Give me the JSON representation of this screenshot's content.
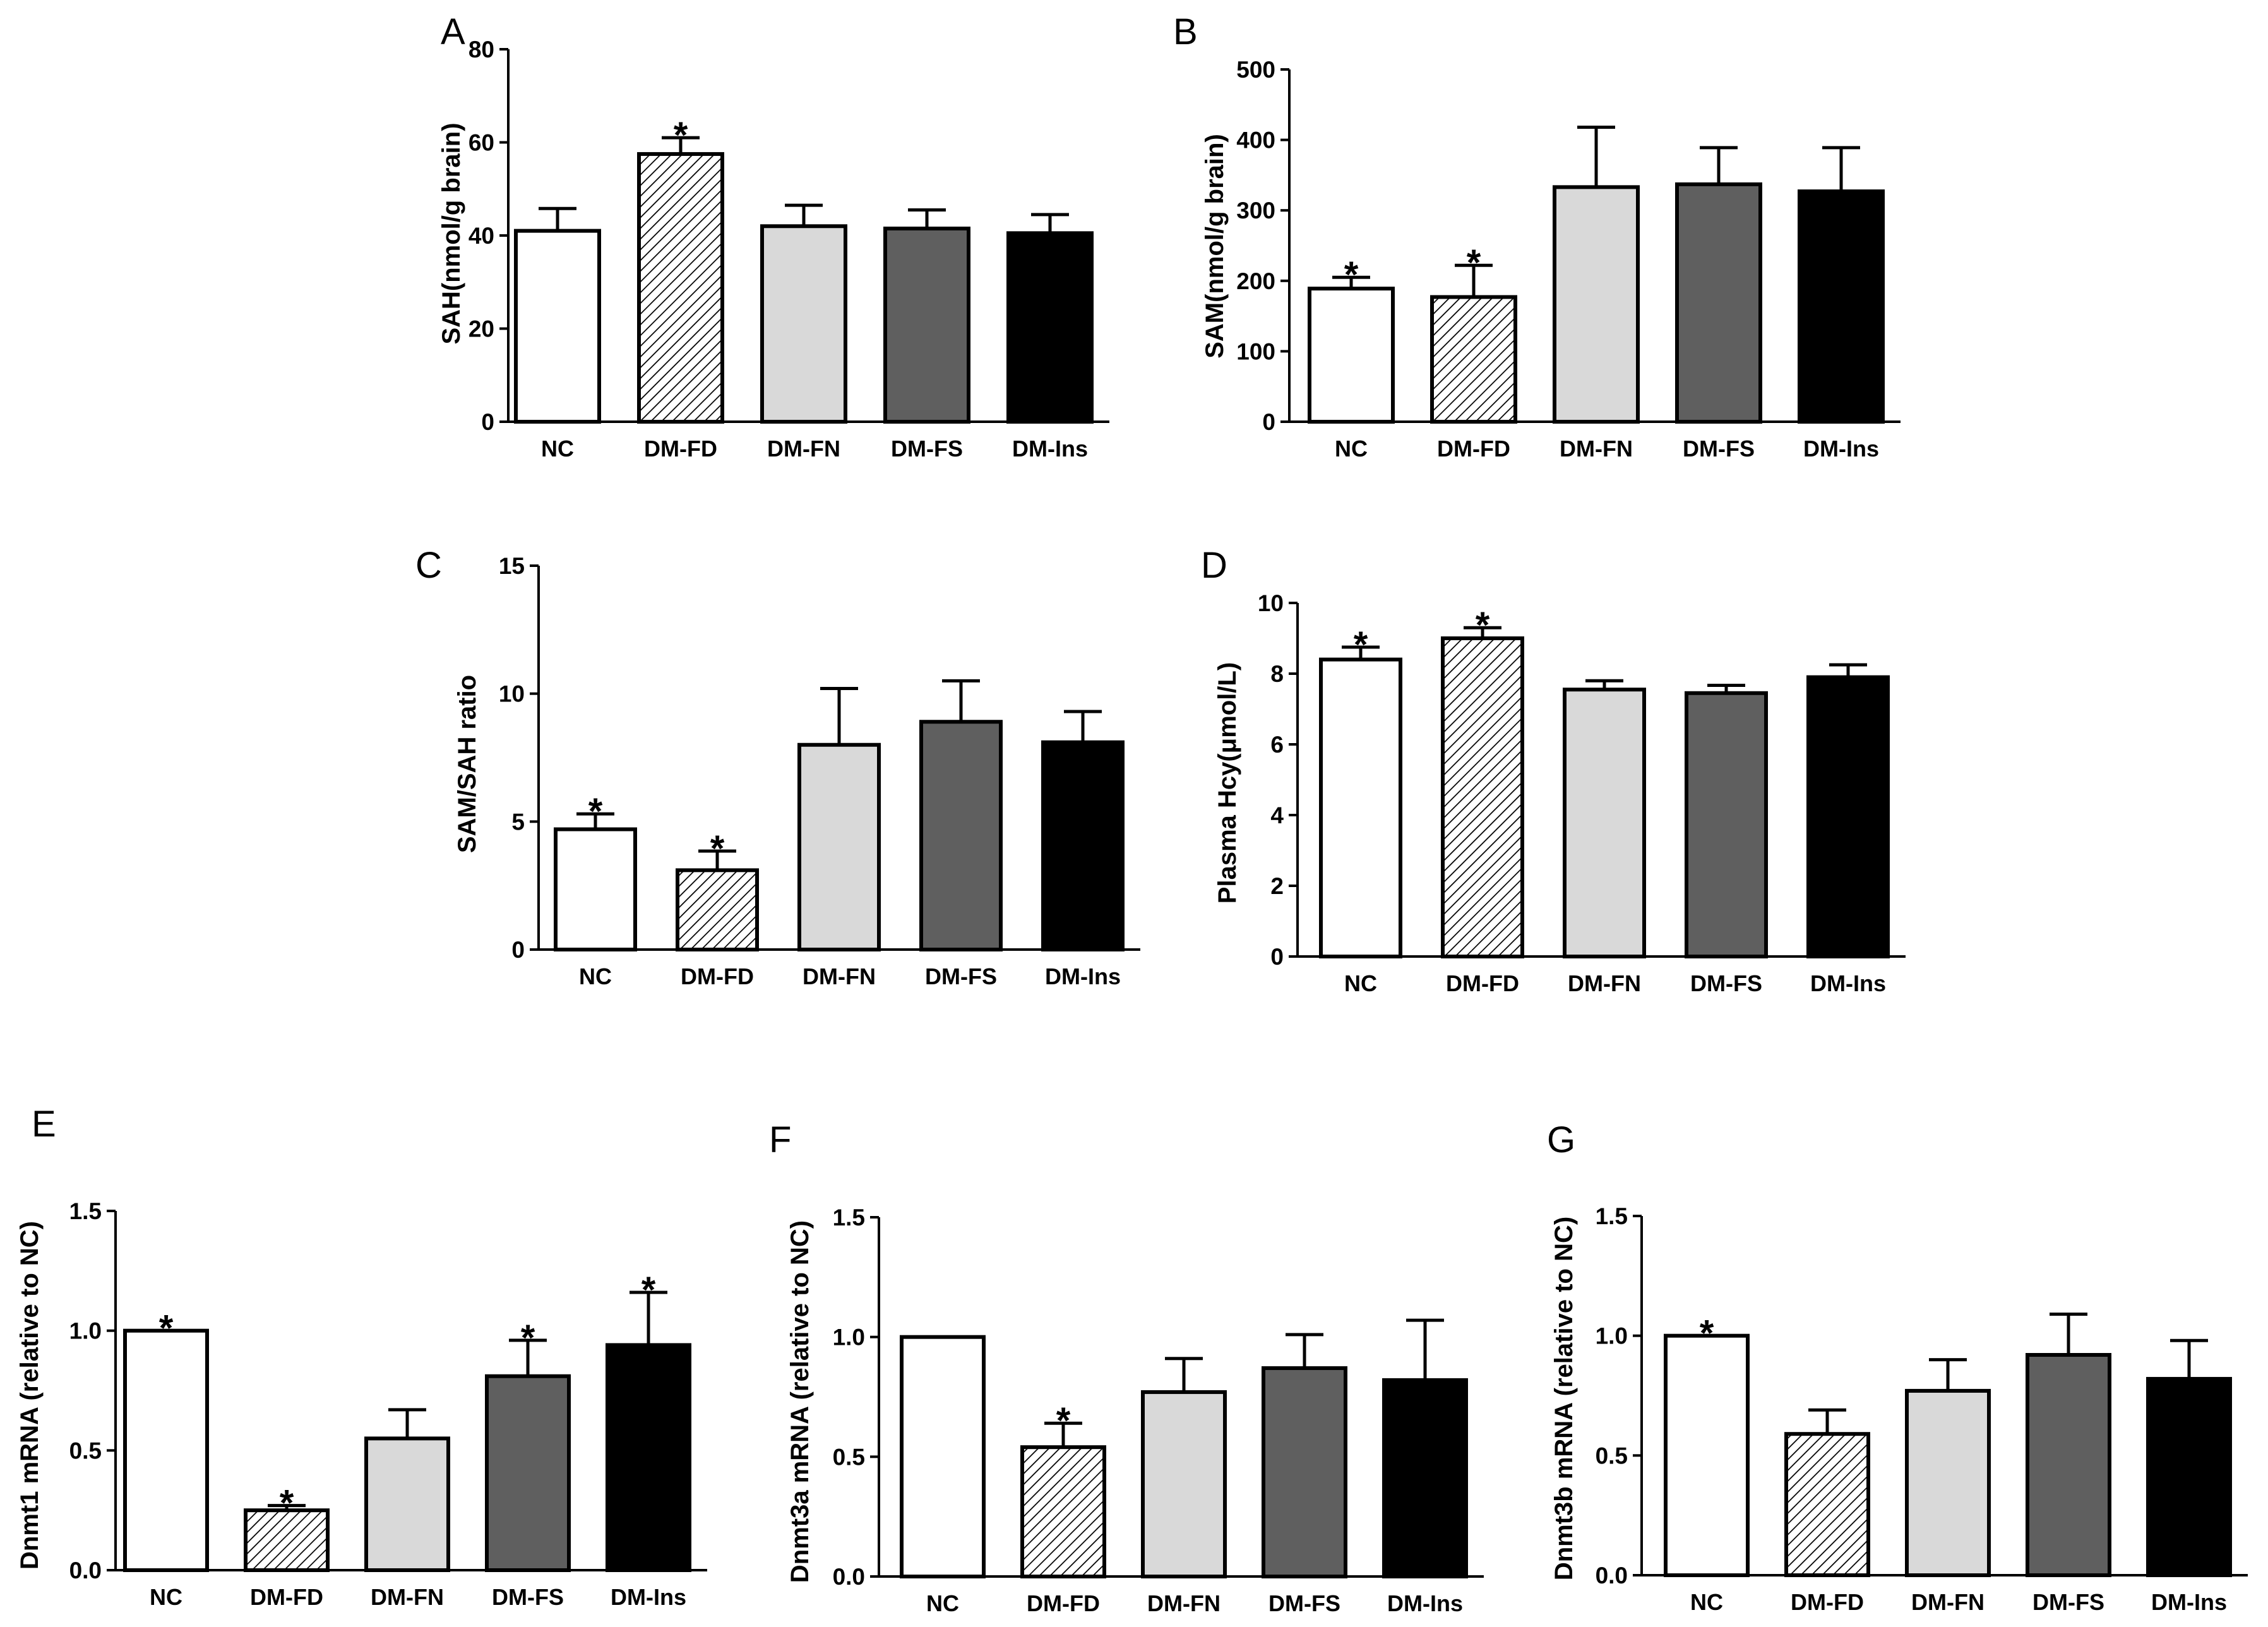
{
  "styles": {
    "NC": {
      "fill": "#ffffff",
      "hatch": false
    },
    "DM-FD": {
      "fill": "#ffffff",
      "hatch": true
    },
    "DM-FN": {
      "fill": "#d9d9d9",
      "hatch": false
    },
    "DM-FS": {
      "fill": "#5f5f5f",
      "hatch": false
    },
    "DM-Ins": {
      "fill": "#000000",
      "hatch": false
    }
  },
  "chart_data": [
    {
      "panel": "A",
      "type": "bar",
      "ylabel": "SAH(nmol/g brain)",
      "categories": [
        "NC",
        "DM-FD",
        "DM-FN",
        "DM-FS",
        "DM-Ins"
      ],
      "values": [
        41,
        57.5,
        42,
        41.5,
        40.5
      ],
      "errors": [
        4.8,
        3.5,
        4.5,
        4,
        4
      ],
      "significant": [
        false,
        true,
        false,
        false,
        false
      ],
      "star_symbol": "*",
      "ylim": [
        0,
        80
      ],
      "yticks": [
        "0",
        "20",
        "40",
        "60",
        "80"
      ]
    },
    {
      "panel": "B",
      "type": "bar",
      "ylabel": "SAM(nmol/g brain)",
      "categories": [
        "NC",
        "DM-FD",
        "DM-FN",
        "DM-FS",
        "DM-Ins"
      ],
      "values": [
        189,
        177,
        333,
        337,
        327
      ],
      "errors": [
        16,
        45,
        85,
        52,
        62
      ],
      "significant": [
        true,
        true,
        false,
        false,
        false
      ],
      "star_symbol": "*",
      "ylim": [
        0,
        500
      ],
      "yticks": [
        "0",
        "100",
        "200",
        "300",
        "400",
        "500"
      ]
    },
    {
      "panel": "C",
      "type": "bar",
      "ylabel": "SAM/SAH ratio",
      "categories": [
        "NC",
        "DM-FD",
        "DM-FN",
        "DM-FS",
        "DM-Ins"
      ],
      "values": [
        4.7,
        3.1,
        8.0,
        8.9,
        8.1
      ],
      "errors": [
        0.6,
        0.75,
        2.2,
        1.6,
        1.2
      ],
      "significant": [
        true,
        true,
        false,
        false,
        false
      ],
      "star_symbol": "*",
      "ylim": [
        0,
        15
      ],
      "yticks": [
        "0",
        "5",
        "10",
        "15"
      ]
    },
    {
      "panel": "D",
      "type": "bar",
      "ylabel": "Plasma Hcy(μmol/L)",
      "categories": [
        "NC",
        "DM-FD",
        "DM-FN",
        "DM-FS",
        "DM-Ins"
      ],
      "values": [
        8.4,
        9.0,
        7.55,
        7.45,
        7.9
      ],
      "errors": [
        0.35,
        0.3,
        0.25,
        0.22,
        0.35
      ],
      "significant": [
        true,
        true,
        false,
        false,
        false
      ],
      "star_symbol": "*",
      "ylim": [
        0,
        10
      ],
      "yticks": [
        "0",
        "2",
        "4",
        "6",
        "8",
        "10"
      ]
    },
    {
      "panel": "E",
      "type": "bar",
      "ylabel": "Dnmt1 mRNA (relative to NC)",
      "categories": [
        "NC",
        "DM-FD",
        "DM-FN",
        "DM-FS",
        "DM-Ins"
      ],
      "values": [
        1.0,
        0.25,
        0.55,
        0.81,
        0.94
      ],
      "errors": [
        0,
        0.02,
        0.12,
        0.15,
        0.22
      ],
      "significant": [
        true,
        true,
        false,
        true,
        true
      ],
      "star_symbol": "*",
      "ylim": [
        0,
        1.5
      ],
      "yticks": [
        "0.0",
        "0.5",
        "1.0",
        "1.5"
      ]
    },
    {
      "panel": "F",
      "type": "bar",
      "ylabel": "Dnmt3a mRNA (relative to NC)",
      "categories": [
        "NC",
        "DM-FD",
        "DM-FN",
        "DM-FS",
        "DM-Ins"
      ],
      "values": [
        1.0,
        0.54,
        0.77,
        0.87,
        0.82
      ],
      "errors": [
        0,
        0.1,
        0.14,
        0.14,
        0.25
      ],
      "significant": [
        false,
        true,
        false,
        false,
        false
      ],
      "star_symbol": "*",
      "ylim": [
        0,
        1.5
      ],
      "yticks": [
        "0.0",
        "0.5",
        "1.0",
        "1.5"
      ]
    },
    {
      "panel": "G",
      "type": "bar",
      "ylabel": "Dnmt3b mRNA (relative to NC)",
      "categories": [
        "NC",
        "DM-FD",
        "DM-FN",
        "DM-FS",
        "DM-Ins"
      ],
      "values": [
        1.0,
        0.59,
        0.77,
        0.92,
        0.82
      ],
      "errors": [
        0,
        0.1,
        0.13,
        0.17,
        0.16
      ],
      "significant": [
        true,
        false,
        false,
        false,
        false
      ],
      "star_symbol": "*",
      "ylim": [
        0,
        1.5
      ],
      "yticks": [
        "0.0",
        "0.5",
        "1.0",
        "1.5"
      ]
    }
  ]
}
